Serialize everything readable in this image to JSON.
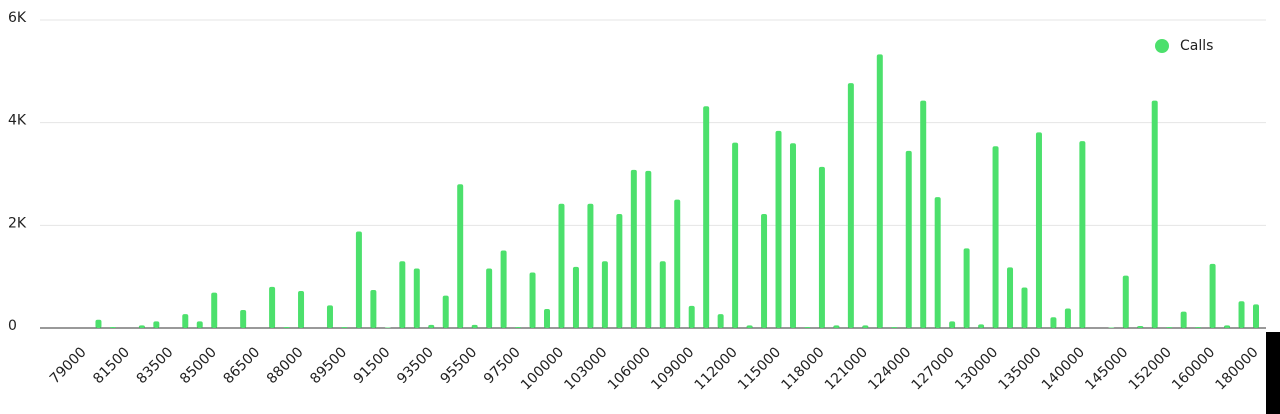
{
  "chart_data": {
    "type": "bar",
    "categories": [
      "79000",
      null,
      null,
      "81500",
      null,
      null,
      "83500",
      null,
      null,
      "85000",
      null,
      null,
      "86500",
      null,
      null,
      "88000",
      null,
      null,
      "89500",
      null,
      null,
      "91500",
      null,
      null,
      "93500",
      null,
      null,
      "95500",
      null,
      null,
      "97500",
      null,
      null,
      "100000",
      null,
      null,
      "103000",
      null,
      null,
      "106000",
      null,
      null,
      "109000",
      null,
      null,
      "112000",
      null,
      null,
      "115000",
      null,
      null,
      "118000",
      null,
      null,
      "121000",
      null,
      null,
      "124000",
      null,
      null,
      "127000",
      null,
      null,
      "130000",
      null,
      null,
      "135000",
      null,
      null,
      "140000",
      null,
      null,
      "145000",
      null,
      null,
      "152000",
      null,
      null,
      "160000",
      null,
      null,
      "180000"
    ],
    "series": [
      {
        "name": "Calls",
        "color": "#4ce06c",
        "values": [
          0,
          160,
          20,
          0,
          50,
          130,
          0,
          270,
          130,
          690,
          0,
          350,
          0,
          800,
          20,
          720,
          0,
          440,
          20,
          1880,
          740,
          10,
          1300,
          1160,
          60,
          630,
          2800,
          60,
          1160,
          1510,
          20,
          1080,
          370,
          2420,
          1190,
          2420,
          1300,
          2220,
          3080,
          3060,
          1300,
          2500,
          430,
          4320,
          270,
          3610,
          50,
          2220,
          3840,
          3600,
          20,
          3140,
          50,
          4770,
          50,
          5330,
          20,
          3450,
          4430,
          2550,
          130,
          1550,
          70,
          3540,
          1180,
          790,
          3810,
          210,
          380,
          3640,
          0,
          10,
          1020,
          40,
          4430,
          20,
          320,
          20,
          1250,
          50,
          520,
          460
        ]
      }
    ],
    "ylim": [
      0,
      6000
    ],
    "yticks": [
      0,
      {
        "value": 2000,
        "label": "2K"
      },
      {
        "value": 4000,
        "label": "4K"
      },
      {
        "value": 6000,
        "label": "6K"
      }
    ],
    "grid": true,
    "legend": "top-right"
  }
}
